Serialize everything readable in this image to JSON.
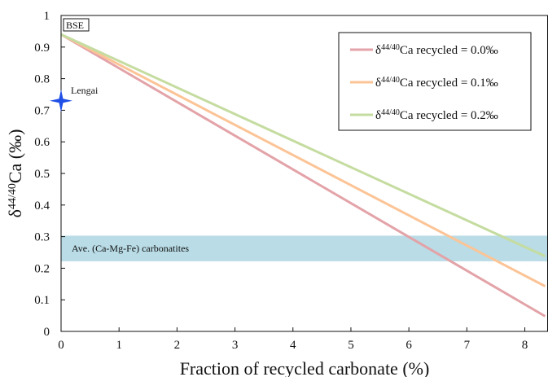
{
  "chart_data": {
    "type": "line",
    "xlabel": "Fraction of recycled carbonate (%)",
    "ylabel": "δ44/40Ca (‰)",
    "xlim": [
      0,
      8.4
    ],
    "ylim": [
      0,
      1
    ],
    "xticks": [
      "0",
      "1",
      "2",
      "3",
      "4",
      "5",
      "6",
      "7",
      "8"
    ],
    "yticks": [
      "0",
      "0.1",
      "0.2",
      "0.3",
      "0.4",
      "0.5",
      "0.6",
      "0.7",
      "0.8",
      "0.9",
      "1"
    ],
    "grid": false,
    "legend_position": "top-right",
    "series": [
      {
        "name": "δ44/40Ca recycled = 0.0‰",
        "color": "#e3a3a8",
        "x": [
          0,
          8.35
        ],
        "y": [
          0.94,
          0.048
        ]
      },
      {
        "name": "δ44/40Ca recycled = 0.1‰",
        "color": "#fcc496",
        "x": [
          0,
          8.35
        ],
        "y": [
          0.94,
          0.143
        ]
      },
      {
        "name": "δ44/40Ca recycled = 0.2‰",
        "color": "#c5dca0",
        "x": [
          0,
          8.35
        ],
        "y": [
          0.94,
          0.238
        ]
      }
    ],
    "band": {
      "label": "Ave. (Ca-Mg-Fe) carbonatites",
      "y_range": [
        0.222,
        0.303
      ],
      "color": "#b9dce6"
    },
    "point": {
      "label": "Lengai",
      "x": 0,
      "y": 0.73,
      "color": "#1f4fe6",
      "marker": "star"
    },
    "annotation": {
      "label": "BSE",
      "x": 0,
      "y": 0.94
    }
  }
}
